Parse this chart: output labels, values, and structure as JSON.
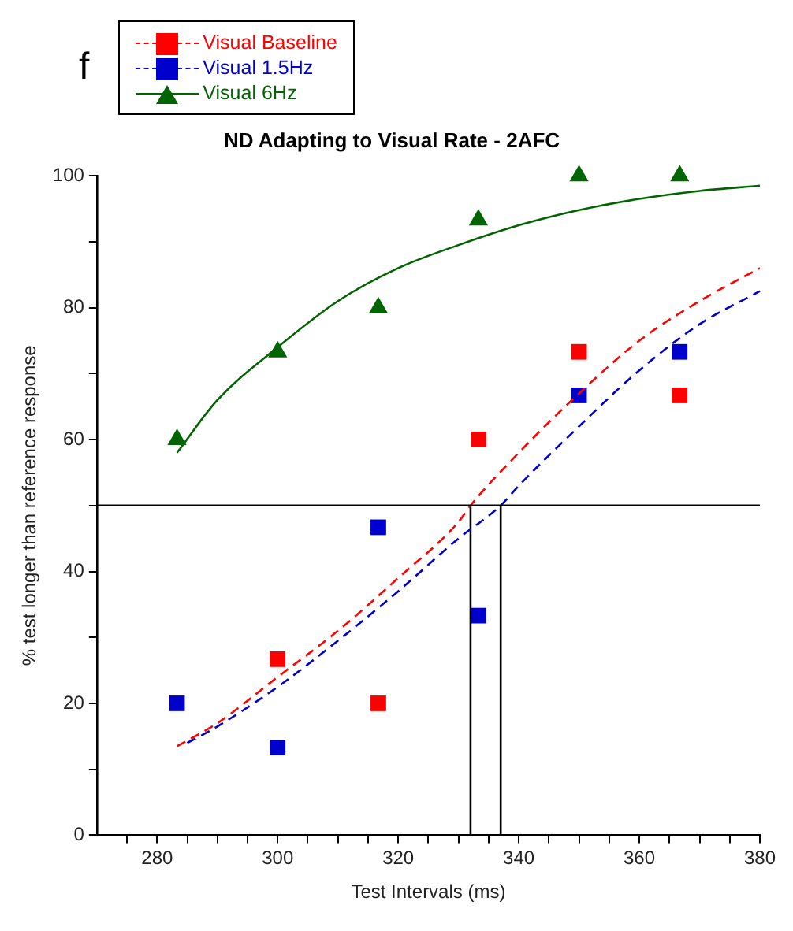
{
  "chart_data": {
    "type": "scatter",
    "title": "ND Adapting to Visual Rate - 2AFC",
    "xlabel": "Test Intervals (ms)",
    "ylabel": "% test longer than reference response",
    "annotations": [
      "f"
    ],
    "xlim": [
      270,
      380
    ],
    "ylim": [
      0,
      100
    ],
    "xticks": [
      {
        "value": 275,
        "label": null
      },
      280,
      {
        "value": 285,
        "label": null
      },
      {
        "value": 290,
        "label": null
      },
      {
        "value": 295,
        "label": null
      },
      300,
      {
        "value": 305,
        "label": null
      },
      {
        "value": 310,
        "label": null
      },
      {
        "value": 315,
        "label": null
      },
      320,
      {
        "value": 325,
        "label": null
      },
      {
        "value": 330,
        "label": null
      },
      {
        "value": 335,
        "label": null
      },
      340,
      {
        "value": 345,
        "label": null
      },
      {
        "value": 350,
        "label": null
      },
      {
        "value": 355,
        "label": null
      },
      360,
      {
        "value": 365,
        "label": null
      },
      {
        "value": 370,
        "label": null
      },
      {
        "value": 375,
        "label": null
      },
      380
    ],
    "yticks": [
      0,
      {
        "value": 10,
        "label": null
      },
      20,
      {
        "value": 30,
        "label": null
      },
      40,
      {
        "value": 50,
        "label": null
      },
      60,
      {
        "value": 70,
        "label": null
      },
      80,
      {
        "value": 90,
        "label": null
      },
      100
    ],
    "grid": false,
    "legend": "top left",
    "ref_lines": [
      {
        "axis": "y",
        "value": 50,
        "color": "#000000"
      }
    ],
    "series": [
      {
        "type": "line",
        "color": "#ff0000",
        "line_style": "dashed",
        "marker": "none",
        "x": [
          283.3,
          290,
          300,
          310,
          320,
          330,
          332,
          340,
          350,
          360,
          370,
          380
        ],
        "values": [
          13.5,
          17,
          24,
          31,
          39,
          47.5,
          50,
          58,
          67,
          75,
          81,
          86
        ]
      },
      {
        "type": "line",
        "color": "#0000cc",
        "line_style": "dashed",
        "marker": "none",
        "x": [
          285,
          290,
          300,
          310,
          320,
          330,
          337,
          340,
          350,
          360,
          370,
          380
        ],
        "values": [
          14,
          16.5,
          22.5,
          29.5,
          37,
          45,
          50,
          53,
          62,
          70.5,
          77.5,
          82.5
        ]
      },
      {
        "type": "line",
        "color": "#006400",
        "line_style": "solid",
        "marker": "none",
        "x": [
          283.3,
          290,
          300,
          310,
          320,
          330,
          340,
          350,
          360,
          370,
          380
        ],
        "values": [
          58,
          66,
          74,
          81,
          86,
          89.5,
          92.5,
          94.8,
          96.5,
          97.7,
          98.5
        ]
      },
      {
        "type": "line",
        "color": "#000000",
        "line_style": "solid",
        "marker": "none",
        "x": [
          332,
          332
        ],
        "values": [
          0,
          50
        ]
      },
      {
        "type": "line",
        "color": "#000000",
        "line_style": "solid",
        "marker": "none",
        "x": [
          337,
          337
        ],
        "values": [
          0,
          50
        ]
      },
      {
        "name": "Visual Baseline",
        "color": "#ff0000",
        "line_style": "dashed",
        "marker": "square",
        "x": [
          300,
          316.7,
          333.3,
          350,
          366.7
        ],
        "values": [
          26.7,
          20,
          60,
          73.3,
          66.7
        ]
      },
      {
        "name": "Visual 1.5Hz",
        "color": "#0000cc",
        "line_style": "dashed",
        "marker": "square",
        "x": [
          283.3,
          300,
          316.7,
          333.3,
          350,
          366.7
        ],
        "values": [
          20,
          13.3,
          46.7,
          33.3,
          66.7,
          73.3
        ]
      },
      {
        "name": "Visual 6Hz",
        "color": "#006400",
        "line_style": "solid",
        "marker": "triangle",
        "x": [
          283.3,
          300,
          316.7,
          333.3,
          350,
          366.7
        ],
        "values": [
          60,
          73.3,
          80,
          93.3,
          100,
          100
        ]
      }
    ]
  }
}
